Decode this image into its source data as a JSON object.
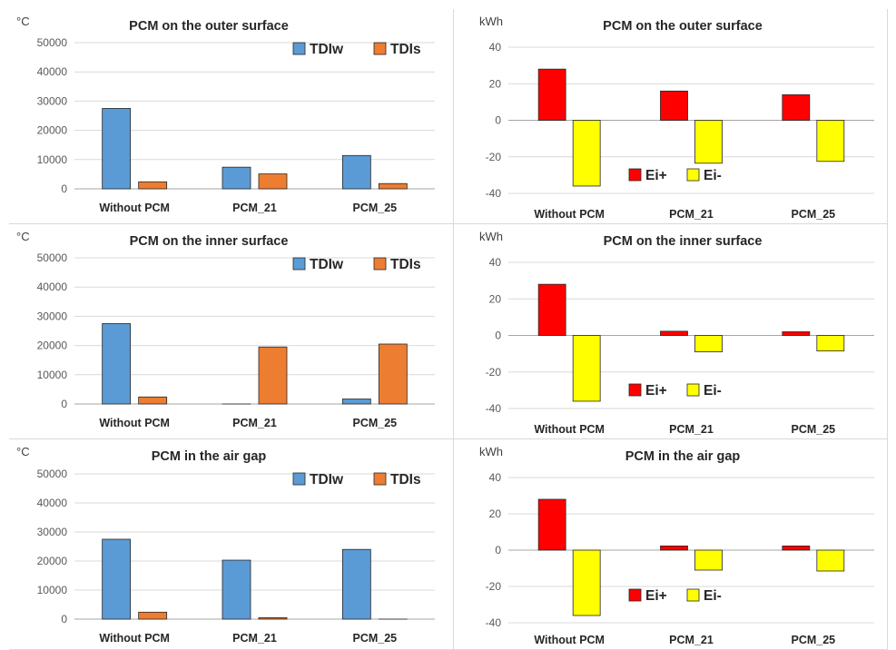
{
  "chart_data": [
    {
      "type": "bar",
      "title": "PCM on the outer surface",
      "unit_label": "°C",
      "categories": [
        "Without PCM",
        "PCM_21",
        "PCM_25"
      ],
      "series": [
        {
          "name": "TDIw",
          "color": "#5b9bd5",
          "values": [
            27500,
            7400,
            11400
          ]
        },
        {
          "name": "TDIs",
          "color": "#ed7d31",
          "values": [
            2400,
            5100,
            1800
          ]
        }
      ],
      "ylim": [
        0,
        50000
      ],
      "yticks": [
        0,
        10000,
        20000,
        30000,
        40000,
        50000
      ],
      "legend": "top-right",
      "grid": true
    },
    {
      "type": "bar",
      "title": "PCM on the outer surface",
      "unit_label": "kWh",
      "categories": [
        "Without PCM",
        "PCM_21",
        "PCM_25"
      ],
      "series": [
        {
          "name": "Ei+",
          "color": "#ff0000",
          "values": [
            28,
            16,
            14
          ]
        },
        {
          "name": "Ei-",
          "color": "#ffff00",
          "values": [
            -36,
            -23.5,
            -22.5
          ]
        }
      ],
      "ylim": [
        -40,
        40
      ],
      "yticks": [
        -40,
        -20,
        0,
        20,
        40
      ],
      "legend": "bottom-center",
      "grid": true
    },
    {
      "type": "bar",
      "title": "PCM on the inner surface",
      "unit_label": "°C",
      "categories": [
        "Without PCM",
        "PCM_21",
        "PCM_25"
      ],
      "series": [
        {
          "name": "TDIw",
          "color": "#5b9bd5",
          "values": [
            27500,
            0,
            1700
          ]
        },
        {
          "name": "TDIs",
          "color": "#ed7d31",
          "values": [
            2400,
            19500,
            20500
          ]
        }
      ],
      "ylim": [
        0,
        50000
      ],
      "yticks": [
        0,
        10000,
        20000,
        30000,
        40000,
        50000
      ],
      "legend": "top-right",
      "grid": true
    },
    {
      "type": "bar",
      "title": "PCM on the inner surface",
      "unit_label": "kWh",
      "categories": [
        "Without PCM",
        "PCM_21",
        "PCM_25"
      ],
      "series": [
        {
          "name": "Ei+",
          "color": "#ff0000",
          "values": [
            28,
            2.3,
            2
          ]
        },
        {
          "name": "Ei-",
          "color": "#ffff00",
          "values": [
            -36,
            -9,
            -8.5
          ]
        }
      ],
      "ylim": [
        -40,
        40
      ],
      "yticks": [
        -40,
        -20,
        0,
        20,
        40
      ],
      "legend": "bottom-center",
      "grid": true
    },
    {
      "type": "bar",
      "title": "PCM in the air gap",
      "unit_label": "°C",
      "categories": [
        "Without PCM",
        "PCM_21",
        "PCM_25"
      ],
      "series": [
        {
          "name": "TDIw",
          "color": "#5b9bd5",
          "values": [
            27500,
            20300,
            24000
          ]
        },
        {
          "name": "TDIs",
          "color": "#ed7d31",
          "values": [
            2400,
            500,
            0
          ]
        }
      ],
      "ylim": [
        0,
        50000
      ],
      "yticks": [
        0,
        10000,
        20000,
        30000,
        40000,
        50000
      ],
      "legend": "top-right",
      "grid": true
    },
    {
      "type": "bar",
      "title": "PCM in the air gap",
      "unit_label": "kWh",
      "categories": [
        "Without PCM",
        "PCM_21",
        "PCM_25"
      ],
      "series": [
        {
          "name": "Ei+",
          "color": "#ff0000",
          "values": [
            28,
            2.3,
            2.3
          ]
        },
        {
          "name": "Ei-",
          "color": "#ffff00",
          "values": [
            -36,
            -11,
            -11.5
          ]
        }
      ],
      "ylim": [
        -40,
        40
      ],
      "yticks": [
        -40,
        -20,
        0,
        20,
        40
      ],
      "legend": "bottom-center",
      "grid": true
    }
  ]
}
